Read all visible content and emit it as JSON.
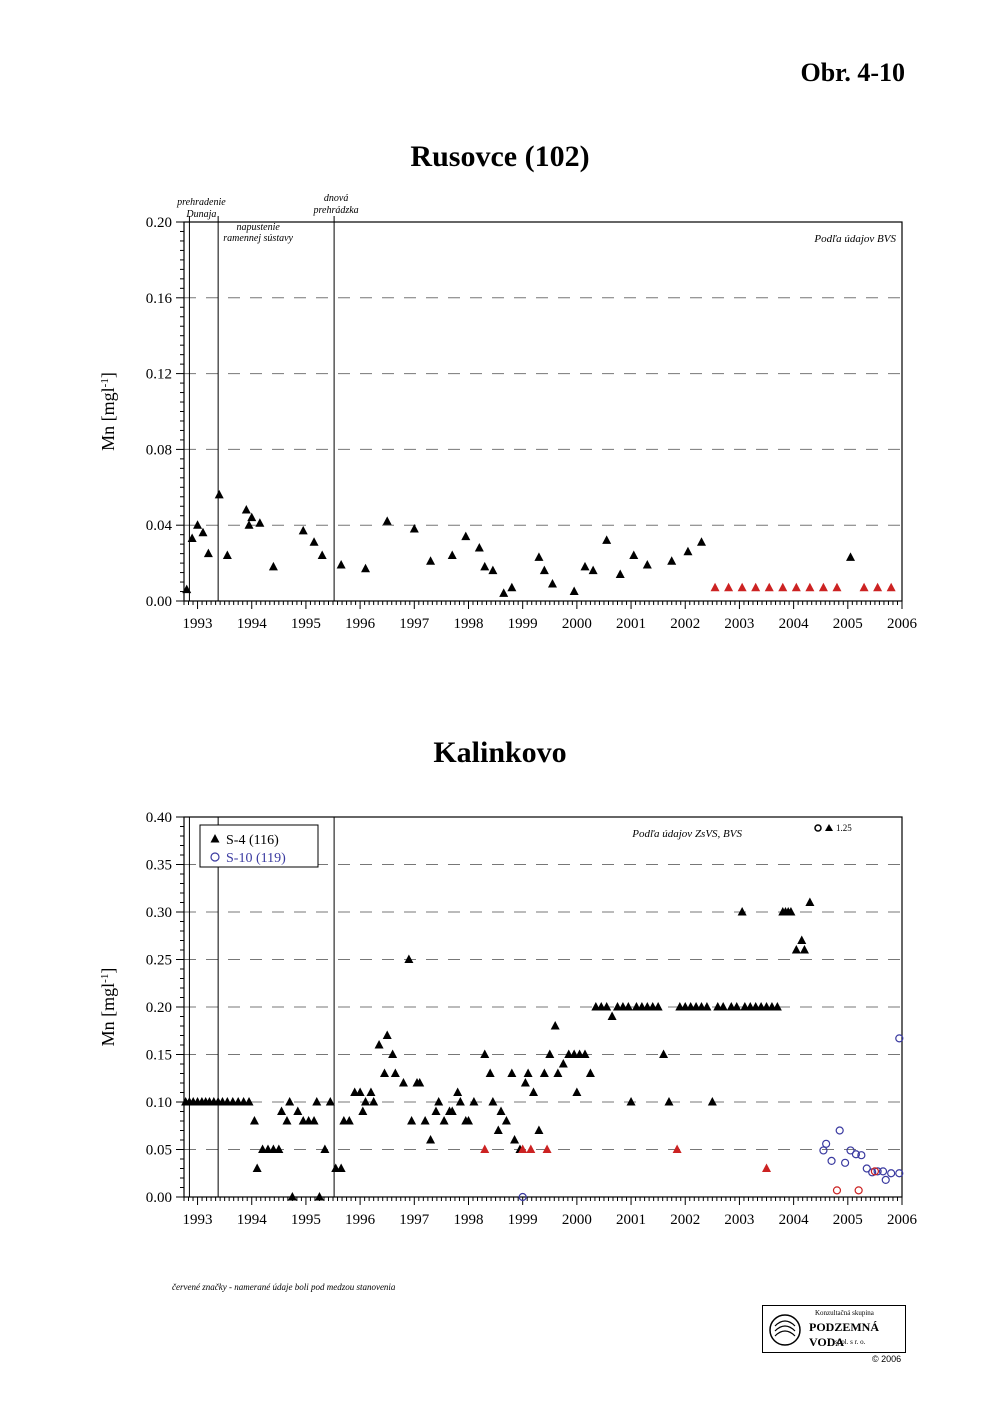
{
  "figure_label": "Obr. 4-10",
  "footnote": "červené značky - namerané údaje boli pod medzou stanovenia",
  "logo": {
    "line1": "Konzultačná skupina",
    "line2": "PODZEMNÁ VODA",
    "line3": "spol. s r. o.",
    "copyright": "© 2006"
  },
  "colors": {
    "black": "#000000",
    "red": "#cc2222",
    "blue": "#3a3aa0"
  },
  "chart_data": [
    {
      "type": "scatter",
      "title": "Rusovce (102)",
      "ylabel": "Mn [mgl-1]",
      "xlabel": "",
      "source_note": "Podľa údajov BVS",
      "xlim": [
        1992.75,
        2006.0
      ],
      "ylim": [
        0,
        0.2
      ],
      "yticks": [
        "0.00",
        "0.04",
        "0.08",
        "0.12",
        "0.16",
        "0.20"
      ],
      "xticks": [
        "1993",
        "1994",
        "1995",
        "1996",
        "1997",
        "1998",
        "1999",
        "2000",
        "2001",
        "2002",
        "2003",
        "2004",
        "2005",
        "2006"
      ],
      "grid": "dashed horizontal",
      "events": [
        {
          "x": 1992.85,
          "label": [
            "prehradenie",
            "Dunaja"
          ]
        },
        {
          "x": 1993.38,
          "label": [
            "napustenie",
            "ramennej sústavy"
          ]
        },
        {
          "x": 1995.52,
          "label": [
            "dnová",
            "prehrádzka"
          ]
        }
      ],
      "series": [
        {
          "marker": "triangle",
          "color": "#000000",
          "points": [
            [
              1992.8,
              0.006
            ],
            [
              1992.9,
              0.033
            ],
            [
              1993.0,
              0.04
            ],
            [
              1993.1,
              0.036
            ],
            [
              1993.2,
              0.025
            ],
            [
              1993.4,
              0.056
            ],
            [
              1993.55,
              0.024
            ],
            [
              1993.9,
              0.048
            ],
            [
              1993.95,
              0.04
            ],
            [
              1994.0,
              0.044
            ],
            [
              1994.15,
              0.041
            ],
            [
              1994.4,
              0.018
            ],
            [
              1994.95,
              0.037
            ],
            [
              1995.15,
              0.031
            ],
            [
              1995.3,
              0.024
            ],
            [
              1995.65,
              0.019
            ],
            [
              1996.1,
              0.017
            ],
            [
              1996.5,
              0.042
            ],
            [
              1997.0,
              0.038
            ],
            [
              1997.3,
              0.021
            ],
            [
              1997.7,
              0.024
            ],
            [
              1997.95,
              0.034
            ],
            [
              1998.2,
              0.028
            ],
            [
              1998.3,
              0.018
            ],
            [
              1998.45,
              0.016
            ],
            [
              1998.65,
              0.004
            ],
            [
              1998.8,
              0.007
            ],
            [
              1999.3,
              0.023
            ],
            [
              1999.4,
              0.016
            ],
            [
              1999.55,
              0.009
            ],
            [
              1999.95,
              0.005
            ],
            [
              2000.15,
              0.018
            ],
            [
              2000.3,
              0.016
            ],
            [
              2000.55,
              0.032
            ],
            [
              2000.8,
              0.014
            ],
            [
              2001.05,
              0.024
            ],
            [
              2001.3,
              0.019
            ],
            [
              2001.75,
              0.021
            ],
            [
              2002.05,
              0.026
            ],
            [
              2002.3,
              0.031
            ],
            [
              2005.05,
              0.023
            ]
          ]
        },
        {
          "marker": "triangle",
          "color": "#cc2222",
          "points": [
            [
              2002.55,
              0.007
            ],
            [
              2002.8,
              0.007
            ],
            [
              2003.05,
              0.007
            ],
            [
              2003.3,
              0.007
            ],
            [
              2003.55,
              0.007
            ],
            [
              2003.8,
              0.007
            ],
            [
              2004.05,
              0.007
            ],
            [
              2004.3,
              0.007
            ],
            [
              2004.55,
              0.007
            ],
            [
              2004.8,
              0.007
            ],
            [
              2005.3,
              0.007
            ],
            [
              2005.55,
              0.007
            ],
            [
              2005.8,
              0.007
            ]
          ]
        }
      ]
    },
    {
      "type": "scatter",
      "title": "Kalinkovo",
      "ylabel": "Mn [mgl-1]",
      "xlabel": "",
      "source_note": "Podľa údajov ZsVS, BVS",
      "outlier_note": "1.25",
      "xlim": [
        1992.75,
        2006.0
      ],
      "ylim": [
        0,
        0.4
      ],
      "yticks": [
        "0.00",
        "0.05",
        "0.10",
        "0.15",
        "0.20",
        "0.25",
        "0.30",
        "0.35",
        "0.40"
      ],
      "xticks": [
        "1993",
        "1994",
        "1995",
        "1996",
        "1997",
        "1998",
        "1999",
        "2000",
        "2001",
        "2002",
        "2003",
        "2004",
        "2005",
        "2006"
      ],
      "grid": "dashed horizontal",
      "legend_position": "top-left",
      "legend": [
        {
          "label": "S-4 (116)",
          "marker": "triangle",
          "color": "#000000"
        },
        {
          "label": "S-10 (119)",
          "marker": "circle",
          "color": "#3a3aa0"
        }
      ],
      "events": [
        {
          "x": 1992.85
        },
        {
          "x": 1993.38
        },
        {
          "x": 1995.52
        }
      ],
      "series": [
        {
          "name": "S-4 (116)",
          "marker": "triangle",
          "color": "#000000",
          "points": [
            [
              1992.78,
              0.1
            ],
            [
              1992.85,
              0.1
            ],
            [
              1992.92,
              0.1
            ],
            [
              1993.0,
              0.1
            ],
            [
              1993.08,
              0.1
            ],
            [
              1993.15,
              0.1
            ],
            [
              1993.22,
              0.1
            ],
            [
              1993.3,
              0.1
            ],
            [
              1993.38,
              0.1
            ],
            [
              1993.46,
              0.1
            ],
            [
              1993.55,
              0.1
            ],
            [
              1993.65,
              0.1
            ],
            [
              1993.75,
              0.1
            ],
            [
              1993.85,
              0.1
            ],
            [
              1993.95,
              0.1
            ],
            [
              1994.05,
              0.08
            ],
            [
              1994.1,
              0.03
            ],
            [
              1994.2,
              0.05
            ],
            [
              1994.3,
              0.05
            ],
            [
              1994.4,
              0.05
            ],
            [
              1994.5,
              0.05
            ],
            [
              1994.55,
              0.09
            ],
            [
              1994.65,
              0.08
            ],
            [
              1994.7,
              0.1
            ],
            [
              1994.75,
              0.0
            ],
            [
              1994.85,
              0.09
            ],
            [
              1994.95,
              0.08
            ],
            [
              1995.05,
              0.08
            ],
            [
              1995.15,
              0.08
            ],
            [
              1995.2,
              0.1
            ],
            [
              1995.25,
              0.0
            ],
            [
              1995.35,
              0.05
            ],
            [
              1995.45,
              0.1
            ],
            [
              1995.55,
              0.03
            ],
            [
              1995.65,
              0.03
            ],
            [
              1995.7,
              0.08
            ],
            [
              1995.8,
              0.08
            ],
            [
              1995.9,
              0.11
            ],
            [
              1996.0,
              0.11
            ],
            [
              1996.05,
              0.09
            ],
            [
              1996.1,
              0.1
            ],
            [
              1996.2,
              0.11
            ],
            [
              1996.25,
              0.1
            ],
            [
              1996.35,
              0.16
            ],
            [
              1996.45,
              0.13
            ],
            [
              1996.5,
              0.17
            ],
            [
              1996.6,
              0.15
            ],
            [
              1996.65,
              0.13
            ],
            [
              1996.8,
              0.12
            ],
            [
              1996.9,
              0.25
            ],
            [
              1996.95,
              0.08
            ],
            [
              1997.05,
              0.12
            ],
            [
              1997.1,
              0.12
            ],
            [
              1997.2,
              0.08
            ],
            [
              1997.3,
              0.06
            ],
            [
              1997.4,
              0.09
            ],
            [
              1997.45,
              0.1
            ],
            [
              1997.55,
              0.08
            ],
            [
              1997.65,
              0.09
            ],
            [
              1997.7,
              0.09
            ],
            [
              1997.8,
              0.11
            ],
            [
              1997.85,
              0.1
            ],
            [
              1997.95,
              0.08
            ],
            [
              1998.0,
              0.08
            ],
            [
              1998.1,
              0.1
            ],
            [
              1998.3,
              0.15
            ],
            [
              1998.4,
              0.13
            ],
            [
              1998.45,
              0.1
            ],
            [
              1998.55,
              0.07
            ],
            [
              1998.6,
              0.09
            ],
            [
              1998.7,
              0.08
            ],
            [
              1998.8,
              0.13
            ],
            [
              1998.85,
              0.06
            ],
            [
              1998.95,
              0.05
            ],
            [
              1999.05,
              0.12
            ],
            [
              1999.1,
              0.13
            ],
            [
              1999.2,
              0.11
            ],
            [
              1999.3,
              0.07
            ],
            [
              1999.4,
              0.13
            ],
            [
              1999.5,
              0.15
            ],
            [
              1999.6,
              0.18
            ],
            [
              1999.65,
              0.13
            ],
            [
              1999.75,
              0.14
            ],
            [
              1999.85,
              0.15
            ],
            [
              1999.95,
              0.15
            ],
            [
              2000.0,
              0.11
            ],
            [
              2000.05,
              0.15
            ],
            [
              2000.15,
              0.15
            ],
            [
              2000.25,
              0.13
            ],
            [
              2000.35,
              0.2
            ],
            [
              2000.45,
              0.2
            ],
            [
              2000.55,
              0.2
            ],
            [
              2000.65,
              0.19
            ],
            [
              2000.75,
              0.2
            ],
            [
              2000.85,
              0.2
            ],
            [
              2000.95,
              0.2
            ],
            [
              2001.0,
              0.1
            ],
            [
              2001.1,
              0.2
            ],
            [
              2001.2,
              0.2
            ],
            [
              2001.3,
              0.2
            ],
            [
              2001.4,
              0.2
            ],
            [
              2001.5,
              0.2
            ],
            [
              2001.6,
              0.15
            ],
            [
              2001.7,
              0.1
            ],
            [
              2001.9,
              0.2
            ],
            [
              2002.0,
              0.2
            ],
            [
              2002.1,
              0.2
            ],
            [
              2002.2,
              0.2
            ],
            [
              2002.3,
              0.2
            ],
            [
              2002.4,
              0.2
            ],
            [
              2002.5,
              0.1
            ],
            [
              2002.6,
              0.2
            ],
            [
              2002.7,
              0.2
            ],
            [
              2002.85,
              0.2
            ],
            [
              2002.95,
              0.2
            ],
            [
              2003.05,
              0.3
            ],
            [
              2003.1,
              0.2
            ],
            [
              2003.2,
              0.2
            ],
            [
              2003.3,
              0.2
            ],
            [
              2003.4,
              0.2
            ],
            [
              2003.5,
              0.2
            ],
            [
              2003.6,
              0.2
            ],
            [
              2003.7,
              0.2
            ],
            [
              2003.8,
              0.3
            ],
            [
              2003.85,
              0.3
            ],
            [
              2003.9,
              0.3
            ],
            [
              2003.95,
              0.3
            ],
            [
              2004.05,
              0.26
            ],
            [
              2004.15,
              0.27
            ],
            [
              2004.2,
              0.26
            ],
            [
              2004.3,
              0.31
            ]
          ]
        },
        {
          "name": "S-4 (116) below detection",
          "marker": "triangle",
          "color": "#cc2222",
          "points": [
            [
              1998.3,
              0.05
            ],
            [
              1999.0,
              0.05
            ],
            [
              1999.15,
              0.05
            ],
            [
              1999.45,
              0.05
            ],
            [
              2001.85,
              0.05
            ],
            [
              2003.5,
              0.03
            ]
          ]
        },
        {
          "name": "S-10 (119)",
          "marker": "circle",
          "color": "#3a3aa0",
          "points": [
            [
              1999.0,
              0.0
            ],
            [
              2004.55,
              0.049
            ],
            [
              2004.6,
              0.056
            ],
            [
              2004.7,
              0.038
            ],
            [
              2004.85,
              0.07
            ],
            [
              2004.95,
              0.036
            ],
            [
              2005.05,
              0.049
            ],
            [
              2005.15,
              0.045
            ],
            [
              2005.25,
              0.044
            ],
            [
              2005.35,
              0.03
            ],
            [
              2005.45,
              0.026
            ],
            [
              2005.55,
              0.027
            ],
            [
              2005.65,
              0.027
            ],
            [
              2005.7,
              0.018
            ],
            [
              2005.8,
              0.025
            ],
            [
              2005.95,
              0.025
            ],
            [
              2005.95,
              0.167
            ]
          ]
        },
        {
          "name": "S-10 (119) below detection",
          "marker": "circle",
          "color": "#cc2222",
          "points": [
            [
              2004.8,
              0.007
            ],
            [
              2005.2,
              0.007
            ],
            [
              2005.5,
              0.027
            ]
          ]
        }
      ]
    }
  ]
}
